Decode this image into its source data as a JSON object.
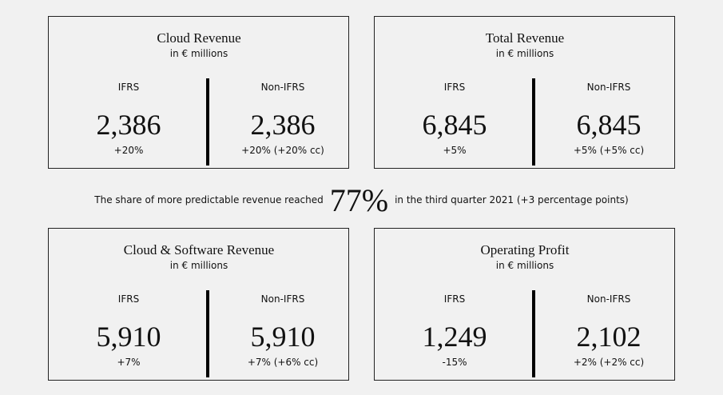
{
  "cards": [
    {
      "title": "Cloud Revenue",
      "subtitle": "in € millions",
      "ifrs": {
        "label": "IFRS",
        "value": "2,386",
        "change": "+20%"
      },
      "non_ifrs": {
        "label": "Non-IFRS",
        "value": "2,386",
        "change": "+20% (+20% cc)"
      }
    },
    {
      "title": "Total Revenue",
      "subtitle": "in € millions",
      "ifrs": {
        "label": "IFRS",
        "value": "6,845",
        "change": "+5%"
      },
      "non_ifrs": {
        "label": "Non-IFRS",
        "value": "6,845",
        "change": "+5% (+5% cc)"
      }
    },
    {
      "title": "Cloud & Software Revenue",
      "subtitle": "in € millions",
      "ifrs": {
        "label": "IFRS",
        "value": "5,910",
        "change": "+7%"
      },
      "non_ifrs": {
        "label": "Non-IFRS",
        "value": "5,910",
        "change": "+7% (+6% cc)"
      }
    },
    {
      "title": "Operating Profit",
      "subtitle": "in € millions",
      "ifrs": {
        "label": "IFRS",
        "value": "1,249",
        "change": "-15%"
      },
      "non_ifrs": {
        "label": "Non-IFRS",
        "value": "2,102",
        "change": "+2% (+2% cc)"
      }
    }
  ],
  "highlight": {
    "prefix": "The share of more predictable revenue reached",
    "value": "77%",
    "suffix": "in the third quarter 2021 (+3 percentage points)"
  }
}
